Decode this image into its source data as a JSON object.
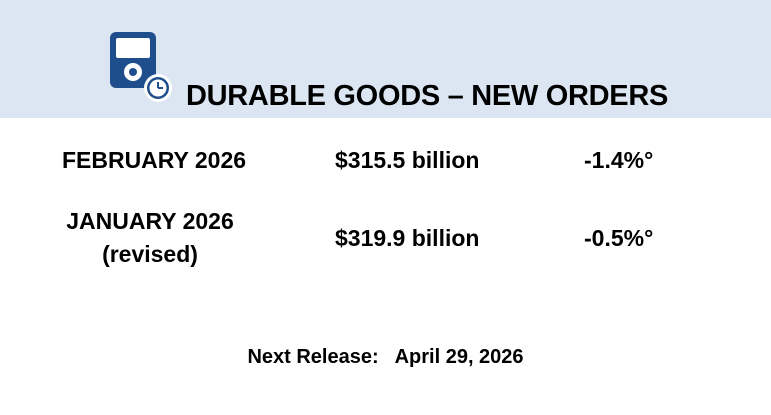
{
  "header": {
    "title": "DURABLE GOODS – NEW ORDERS",
    "icon": "ipod-clock-icon",
    "band_color": "#dce6f2",
    "icon_color": "#1f4e8c"
  },
  "rows": [
    {
      "period": "FEBRUARY 2026",
      "note": "",
      "value": "$315.5 billion",
      "change": "-1.4%°"
    },
    {
      "period": "JANUARY 2026",
      "note": "(revised)",
      "value": "$319.9 billion",
      "change": "-0.5%°"
    }
  ],
  "footer": {
    "label": "Next Release:",
    "date": "April 29, 2026"
  }
}
